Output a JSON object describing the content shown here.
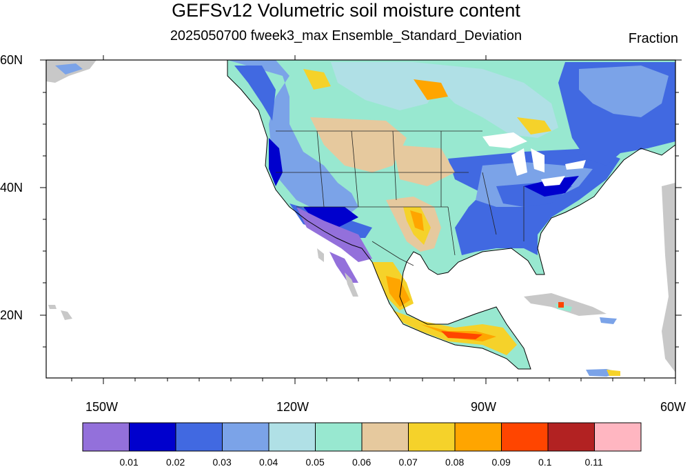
{
  "title": "GEFSv12 Volumetric soil moisture content",
  "subtitle": "2025050700 fweek3_max Ensemble_Standard_Deviation",
  "units": "Fraction",
  "lat_labels": [
    "60N",
    "40N",
    "20N"
  ],
  "lon_labels": [
    "150W",
    "120W",
    "90W",
    "60W"
  ],
  "colorbar": {
    "colors": [
      "#9370db",
      "#0000cd",
      "#4169e1",
      "#7ba3e8",
      "#b0e0e6",
      "#98e8d0",
      "#e6c99e",
      "#f5d22a",
      "#ffa500",
      "#ff4500",
      "#b22222",
      "#ffb6c1"
    ],
    "labels": [
      "0.01",
      "0.02",
      "0.03",
      "0.04",
      "0.05",
      "0.06",
      "0.07",
      "0.08",
      "0.09",
      "0.1",
      "0.11"
    ]
  },
  "colors": {
    "land_missing": "#c8c8c8",
    "background": "#ffffff"
  }
}
